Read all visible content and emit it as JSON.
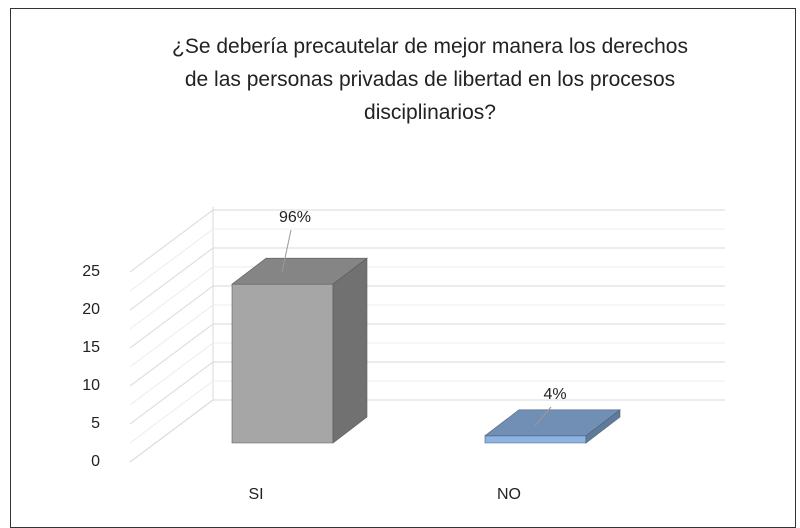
{
  "chart_data": {
    "type": "bar3d",
    "title": "¿Se debería precautelar de mejor manera los derechos\nde las personas privadas de libertad en los procesos\ndisciplinarios?",
    "categories": [
      "SI",
      "NO"
    ],
    "values": [
      22,
      1
    ],
    "labels": [
      "96%",
      "4%"
    ],
    "colors": [
      "#a6a6a6",
      "#8db3e2"
    ],
    "ylim": [
      0,
      25
    ],
    "yticks": [
      0,
      5,
      10,
      15,
      20,
      25
    ],
    "grid": true
  }
}
